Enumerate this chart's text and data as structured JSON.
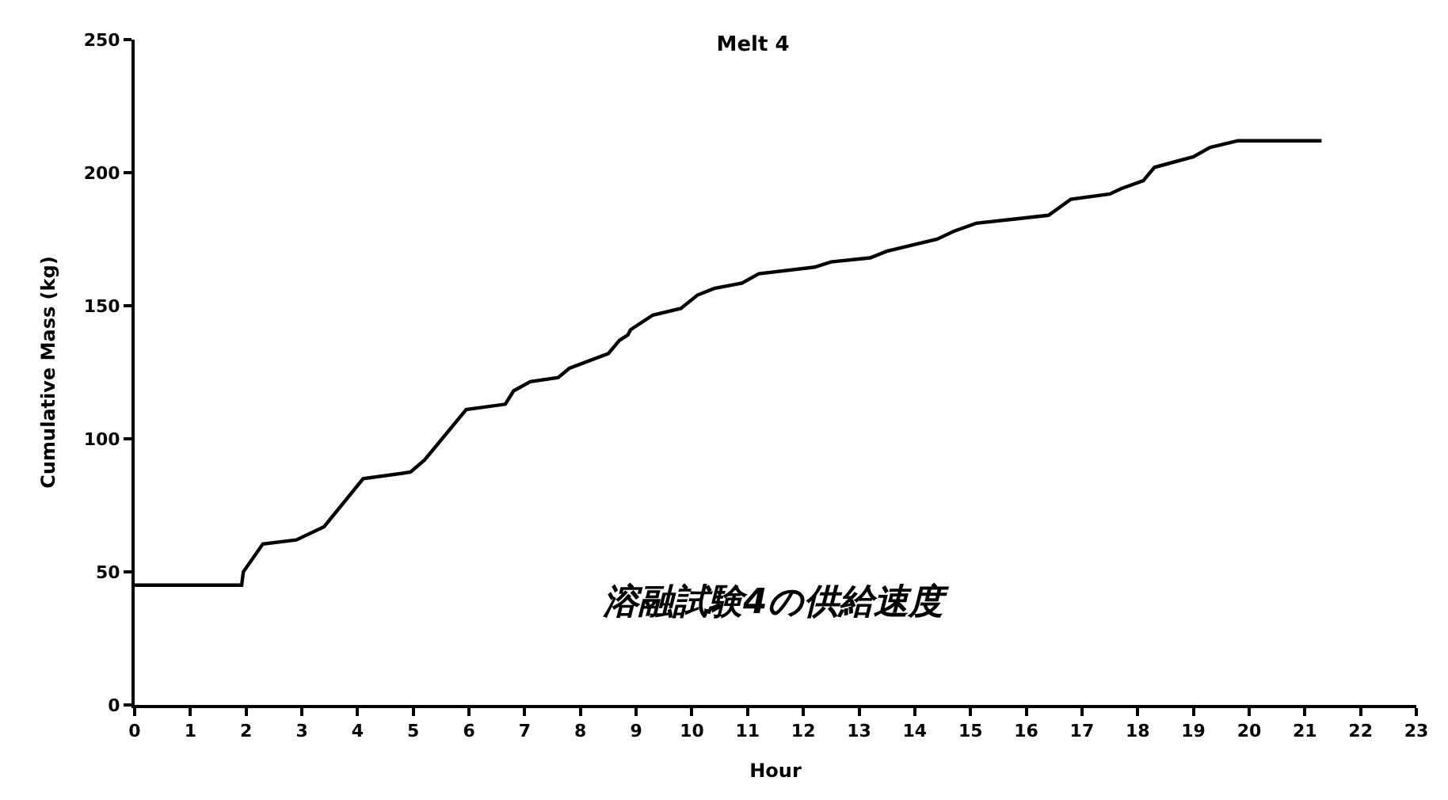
{
  "chart_data": {
    "type": "line",
    "title": "Melt 4",
    "xlabel": "Hour",
    "ylabel": "Cumulative Mass (kg)",
    "annotations": [
      "溶融試験4の供給速度"
    ],
    "x": [
      0,
      1.92,
      1.95,
      2.3,
      2.9,
      3.4,
      4.1,
      4.95,
      5.2,
      5.95,
      6.65,
      6.8,
      7.1,
      7.6,
      7.8,
      8.5,
      8.7,
      8.85,
      8.9,
      9.3,
      9.8,
      10.1,
      10.4,
      10.9,
      11.2,
      12.2,
      12.5,
      13.2,
      13.5,
      14.4,
      14.7,
      15.1,
      16.4,
      16.6,
      16.8,
      17.5,
      17.7,
      18.1,
      18.3,
      19.0,
      19.3,
      19.8,
      21.3
    ],
    "series": [
      {
        "color": "#000000",
        "values": [
          45,
          45,
          50,
          60.5,
          62,
          67,
          85,
          87.5,
          92,
          111,
          113,
          118,
          121.5,
          123,
          126.5,
          132,
          137,
          139,
          141,
          146.5,
          149,
          154,
          156.5,
          158.5,
          162,
          164.5,
          166.5,
          168,
          170.5,
          175,
          178,
          181,
          184,
          187,
          190,
          192,
          194,
          197,
          202,
          206,
          209.5,
          212,
          212
        ]
      }
    ],
    "xlim": [
      0,
      23
    ],
    "xticks": [
      0,
      1,
      2,
      3,
      4,
      5,
      6,
      7,
      8,
      9,
      10,
      11,
      12,
      13,
      14,
      15,
      16,
      17,
      18,
      19,
      20,
      21,
      22,
      23
    ],
    "ylim": [
      0,
      250
    ],
    "yticks": [
      0,
      50,
      100,
      150,
      200,
      250
    ],
    "legend": false,
    "marker": "none",
    "line_style": "solid"
  }
}
